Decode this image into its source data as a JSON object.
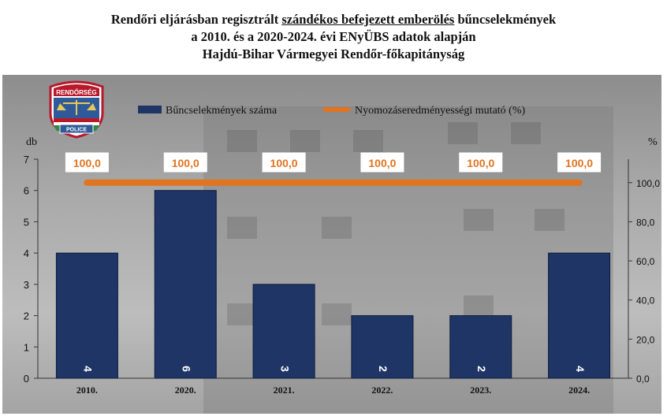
{
  "title": {
    "line1_pre": "Rendőri eljárásban regisztrált ",
    "line1_underlined": "szándékos befejezett emberölés",
    "line1_post": " bűncselekmények",
    "line2": "a 2010. és a 2020-2024. évi ENyÜBS adatok alapján",
    "line3": "Hajdú-Bihar Vármegyei Rendőr-főkapitányság"
  },
  "logo": {
    "top_text": "RENDŐRSÉG",
    "bottom_text": "POLICE"
  },
  "colors": {
    "bar": "#1f3566",
    "line": "#e07420",
    "label_text": "#e07420"
  },
  "chart_data": {
    "type": "bar",
    "categories": [
      "2010.",
      "2020.",
      "2021.",
      "2022.",
      "2023.",
      "2024."
    ],
    "series": [
      {
        "name": "Bűncselekmények száma",
        "type": "bar",
        "axis": "left",
        "values": [
          4,
          6,
          3,
          2,
          2,
          4
        ],
        "labels": [
          "4",
          "6",
          "3",
          "2",
          "2",
          "4"
        ]
      },
      {
        "name": "Nyomozáseredményességi mutató (%)",
        "type": "line",
        "axis": "right",
        "values": [
          100,
          100,
          100,
          100,
          100,
          100
        ],
        "labels": [
          "100,0",
          "100,0",
          "100,0",
          "100,0",
          "100,0",
          "100,0"
        ]
      }
    ],
    "ylabel": "db",
    "y2label": "%",
    "ylim": [
      0,
      7
    ],
    "y2lim": [
      0,
      112
    ],
    "yticks": [
      "0",
      "1",
      "2",
      "3",
      "4",
      "5",
      "6",
      "7"
    ],
    "y2ticks": [
      "0,0",
      "20,0",
      "40,0",
      "60,0",
      "80,0",
      "100,0"
    ],
    "legend": "top"
  }
}
